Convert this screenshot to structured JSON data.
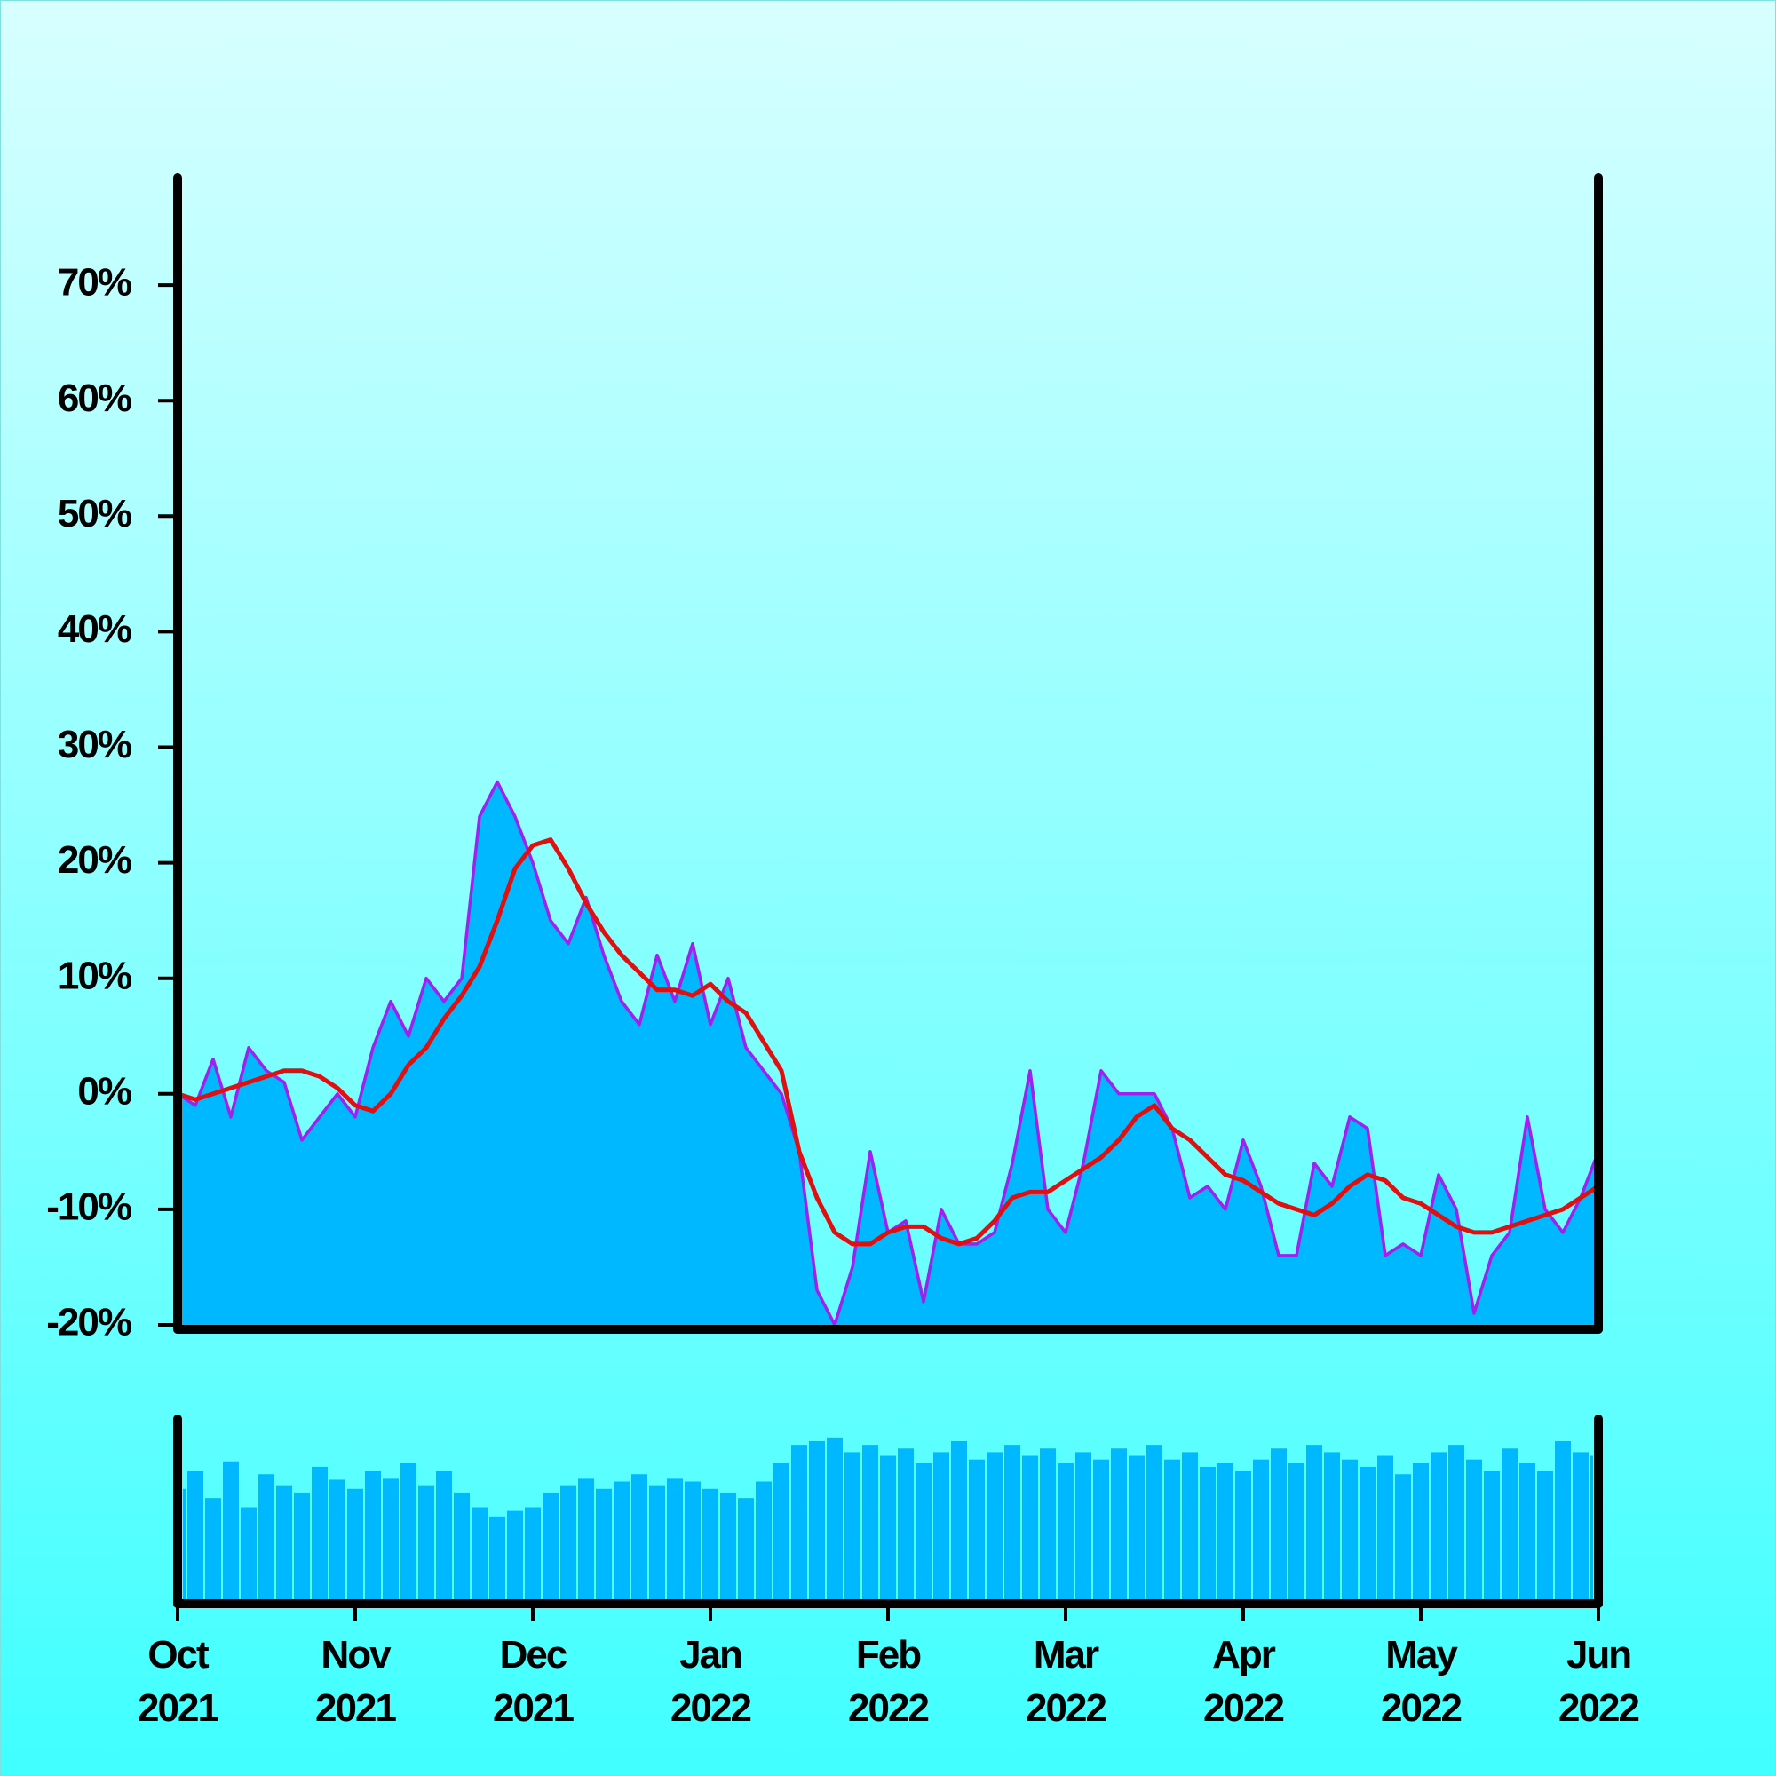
{
  "chart_data": [
    {
      "type": "line",
      "x": [
        0,
        0.1,
        0.2,
        0.3,
        0.4,
        0.5,
        0.6,
        0.7,
        0.8,
        0.9,
        1,
        1.1,
        1.2,
        1.3,
        1.4,
        1.5,
        1.6,
        1.7,
        1.8,
        1.9,
        2,
        2.1,
        2.2,
        2.3,
        2.4,
        2.5,
        2.6,
        2.7,
        2.8,
        2.9,
        3,
        3.1,
        3.2,
        3.3,
        3.4,
        3.5,
        3.6,
        3.7,
        3.8,
        3.9,
        4,
        4.1,
        4.2,
        4.3,
        4.4,
        4.5,
        4.6,
        4.7,
        4.8,
        4.9,
        5,
        5.1,
        5.2,
        5.3,
        5.4,
        5.5,
        5.6,
        5.7,
        5.8,
        5.9,
        6,
        6.1,
        6.2,
        6.3,
        6.4,
        6.5,
        6.6,
        6.7,
        6.8,
        6.9,
        7,
        7.1,
        7.2,
        7.3,
        7.4,
        7.5,
        7.6,
        7.7,
        7.8,
        7.9,
        8
      ],
      "series": [
        {
          "color": "#a020f0",
          "fill": "#00b8ff",
          "values": [
            0,
            -1,
            3,
            -2,
            4,
            2,
            1,
            -4,
            -2,
            0,
            -2,
            4,
            8,
            5,
            10,
            8,
            10,
            24,
            27,
            24,
            20,
            15,
            13,
            17,
            12,
            8,
            6,
            12,
            8,
            13,
            6,
            10,
            4,
            2,
            0,
            -5,
            -17,
            -20,
            -15,
            -5,
            -12,
            -11,
            -18,
            -10,
            -13,
            -13,
            -12,
            -6,
            2,
            -10,
            -12,
            -6,
            2,
            0,
            0,
            0,
            -3,
            -9,
            -8,
            -10,
            -4,
            -8,
            -14,
            -14,
            -6,
            -8,
            -2,
            -3,
            -14,
            -13,
            -14,
            -7,
            -10,
            -19,
            -14,
            -12,
            -2,
            -10,
            -12,
            -9,
            -5
          ]
        },
        {
          "color": "#e01010",
          "values": [
            0,
            -0.5,
            0,
            0.5,
            1,
            1.5,
            2,
            2,
            1.5,
            0.5,
            -1,
            -1.5,
            0,
            2.5,
            4,
            6.5,
            8.5,
            11,
            15,
            19.5,
            21.5,
            22,
            19.5,
            16.5,
            14,
            12,
            10.5,
            9,
            9,
            8.5,
            9.5,
            8,
            7,
            4.5,
            2,
            -5,
            -9,
            -12,
            -13,
            -13,
            -12,
            -11.5,
            -11.5,
            -12.5,
            -13,
            -12.5,
            -11,
            -9,
            -8.5,
            -8.5,
            -7.5,
            -6.5,
            -5.5,
            -4,
            -2,
            -1,
            -3,
            -4,
            -5.5,
            -7,
            -7.5,
            -8.5,
            -9.5,
            -10,
            -10.5,
            -9.5,
            -8,
            -7,
            -7.5,
            -9,
            -9.5,
            -10.5,
            -11.5,
            -12,
            -12,
            -11.5,
            -11,
            -10.5,
            -10,
            -9,
            -8
          ]
        }
      ],
      "xlim": [
        0,
        8
      ],
      "xticks": [
        {
          "value": 0,
          "label": "Oct 2021"
        },
        {
          "value": 1,
          "label": "Nov 2021"
        },
        {
          "value": 2,
          "label": "Dec 2021"
        },
        {
          "value": 3,
          "label": "Jan 2022"
        },
        {
          "value": 4,
          "label": "Feb 2022"
        },
        {
          "value": 5,
          "label": "Mar 2022"
        },
        {
          "value": 6,
          "label": "Apr 2022"
        },
        {
          "value": 7,
          "label": "May 2022"
        },
        {
          "value": 8,
          "label": "Jun 2022"
        }
      ],
      "ylim": [
        -20,
        80
      ],
      "yticks": [
        {
          "value": -20,
          "label": "-20%"
        },
        {
          "value": -10,
          "label": "-10%"
        },
        {
          "value": 0,
          "label": "0%"
        },
        {
          "value": 10,
          "label": "10%"
        },
        {
          "value": 20,
          "label": "20%"
        },
        {
          "value": 30,
          "label": "30%"
        },
        {
          "value": 40,
          "label": "40%"
        },
        {
          "value": 50,
          "label": "50%"
        },
        {
          "value": 60,
          "label": "60%"
        },
        {
          "value": 70,
          "label": "70%"
        }
      ]
    },
    {
      "type": "bar",
      "color": "#00b8ff",
      "ylim": [
        0,
        100
      ],
      "values": [
        60,
        70,
        55,
        75,
        50,
        68,
        62,
        58,
        72,
        65,
        60,
        70,
        66,
        74,
        62,
        70,
        58,
        50,
        45,
        48,
        50,
        58,
        62,
        66,
        60,
        64,
        68,
        62,
        66,
        64,
        60,
        58,
        55,
        64,
        74,
        84,
        86,
        88,
        80,
        84,
        78,
        82,
        74,
        80,
        86,
        76,
        80,
        84,
        78,
        82,
        74,
        80,
        76,
        82,
        78,
        84,
        76,
        80,
        72,
        74,
        70,
        76,
        82,
        74,
        84,
        80,
        76,
        72,
        78,
        68,
        74,
        80,
        84,
        76,
        70,
        82,
        74,
        70,
        86,
        80,
        78
      ]
    }
  ]
}
